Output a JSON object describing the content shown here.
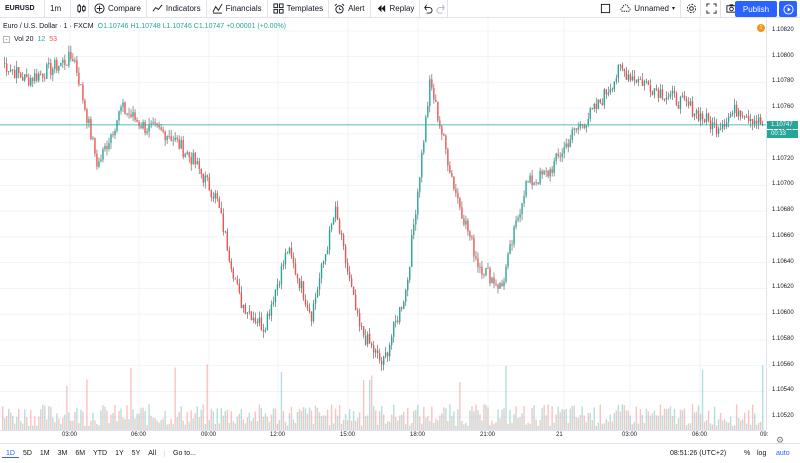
{
  "toolbar": {
    "symbol": "EURUSD",
    "interval": "1m",
    "compare": "Compare",
    "indicators": "Indicators",
    "financials": "Financials",
    "templates": "Templates",
    "alert": "Alert",
    "replay": "Replay",
    "layout_name": "Unnamed",
    "publish": "Publish"
  },
  "legend": {
    "title": "Euro / U.S. Dollar · 1 · FXCM",
    "ohlc": "O1.10746 H1.10748 L1.10746 C1.10747 +0.00001 (+0.00%)"
  },
  "volume_legend": {
    "label": "Vol 20",
    "val1": "12",
    "val2": "53"
  },
  "badge": "1",
  "price_axis": {
    "ticks": [
      "1.10820",
      "1.10800",
      "1.10780",
      "1.10760",
      "1.10740",
      "1.10720",
      "1.10700",
      "1.10680",
      "1.10660",
      "1.10640",
      "1.10620",
      "1.10600",
      "1.10580",
      "1.10560",
      "1.10540",
      "1.10520"
    ],
    "last_price": "1.10747",
    "countdown": "00:33"
  },
  "time_axis": {
    "ticks": [
      "03:00",
      "06:00",
      "09:00",
      "12:00",
      "15:00",
      "18:00",
      "21:00",
      "21",
      "03:00",
      "06:00",
      "09:"
    ]
  },
  "bottom_bar": {
    "periods": [
      "1D",
      "5D",
      "1M",
      "3M",
      "6M",
      "YTD",
      "1Y",
      "5Y",
      "All"
    ],
    "active_period": "1D",
    "goto": "Go to...",
    "clock": "08:51:26 (UTC+2)",
    "percent": "%",
    "log": "log",
    "auto": "auto"
  },
  "chart_data": {
    "type": "candlestick",
    "symbol": "Euro / U.S. Dollar",
    "ylim": [
      1.1051,
      1.1083
    ],
    "x": [
      "00:00",
      "01:00",
      "02:00",
      "03:00",
      "04:00",
      "05:00",
      "06:00",
      "07:00",
      "08:00",
      "09:00",
      "10:00",
      "11:00",
      "12:00",
      "13:00",
      "14:00",
      "15:00",
      "16:00",
      "17:00",
      "18:00",
      "19:00",
      "20:00",
      "21:00",
      "22:00",
      "23:00",
      "00:00",
      "01:00",
      "02:00",
      "03:00",
      "04:00",
      "05:00",
      "06:00",
      "07:00",
      "08:00"
    ],
    "close": [
      1.10795,
      1.10782,
      1.1079,
      1.108,
      1.10715,
      1.1076,
      1.10745,
      1.1074,
      1.1072,
      1.1069,
      1.1061,
      1.1059,
      1.1065,
      1.106,
      1.1068,
      1.1059,
      1.1056,
      1.1062,
      1.1078,
      1.107,
      1.1064,
      1.1062,
      1.107,
      1.1071,
      1.1074,
      1.1076,
      1.1079,
      1.1078,
      1.1077,
      1.1076,
      1.10745,
      1.1076,
      1.10747
    ],
    "last_price": 1.10747,
    "colors": {
      "up": "#26a69a",
      "down": "#ef5350",
      "last_line": "#26a69a"
    }
  }
}
